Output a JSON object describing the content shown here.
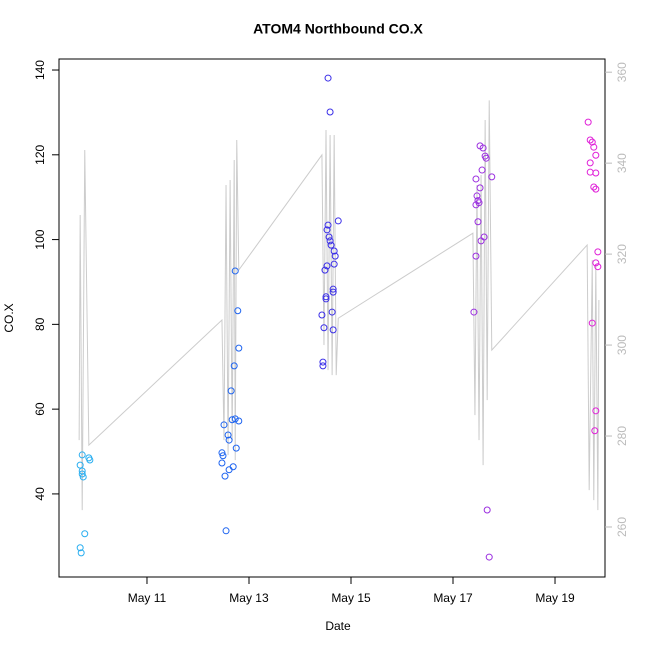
{
  "chart_data": {
    "type": "scatter",
    "title": "ATOM4 Northbound CO.X",
    "x_label": "Date",
    "y_label": "CO.X",
    "xlim": [
      9.275,
      19.98
    ],
    "xticks": [
      {
        "value": 11,
        "label": "May 11"
      },
      {
        "value": 13,
        "label": "May 13"
      },
      {
        "value": 15,
        "label": "May 15"
      },
      {
        "value": 17,
        "label": "May 17"
      },
      {
        "value": 19,
        "label": "May 19"
      }
    ],
    "ylim": [
      20.4,
      142.6
    ],
    "yticks": [
      40,
      60,
      80,
      100,
      120,
      140
    ],
    "y2lim": [
      249,
      362.9
    ],
    "y2ticks": [
      260,
      280,
      300,
      320,
      340,
      360
    ],
    "series": [
      {
        "color": "#29aef0",
        "x": [
          9.69,
          9.73,
          9.73,
          9.75,
          9.73,
          9.86,
          9.88,
          9.78,
          9.69,
          9.71
        ],
        "values": [
          46.8,
          45.4,
          44.7,
          44,
          49.2,
          48.5,
          48,
          30.6,
          27.3,
          26.1
        ]
      },
      {
        "color": "#1e64f0",
        "x": [
          12.51,
          12.47,
          12.49,
          12.47,
          12.53,
          12.55,
          12.61,
          12.59,
          12.61,
          12.65,
          12.67,
          12.69,
          12.71,
          12.73,
          12.75,
          12.78,
          12.8,
          12.8,
          12.73
        ],
        "values": [
          56.3,
          49.7,
          49,
          47.3,
          44.2,
          31.3,
          45.7,
          53.9,
          52.7,
          64.3,
          57.5,
          46.4,
          70.2,
          92.6,
          50.8,
          83.2,
          74.4,
          57.2,
          57.7
        ]
      },
      {
        "color": "#3a2ee8",
        "x": [
          14.55,
          14.59,
          14.43,
          14.45,
          14.45,
          14.47,
          14.49,
          14.51,
          14.51,
          14.53,
          14.55,
          14.53,
          14.57,
          14.59,
          14.61,
          14.65,
          14.65,
          14.63,
          14.65,
          14.67,
          14.69,
          14.67,
          14.75
        ],
        "values": [
          138.1,
          130.1,
          82.2,
          71.1,
          70.2,
          79.2,
          92.8,
          86.5,
          86,
          93.8,
          103.4,
          102.3,
          100.6,
          99.7,
          98.7,
          87.6,
          88.3,
          82.9,
          78.7,
          97.3,
          96.1,
          94.2,
          104.4
        ]
      },
      {
        "color": "#9b2fe0",
        "x": [
          17.41,
          17.45,
          17.45,
          17.47,
          17.45,
          17.49,
          17.51,
          17.53,
          17.55,
          17.53,
          17.57,
          17.59,
          17.63,
          17.65,
          17.61,
          17.67,
          17.71,
          17.76,
          17.49
        ],
        "values": [
          82.9,
          96.1,
          108.2,
          110.3,
          114.3,
          104.2,
          108.7,
          122.1,
          99.7,
          112.2,
          116.4,
          121.6,
          119.7,
          119.2,
          100.6,
          36.2,
          25.1,
          114.8,
          109.2
        ]
      },
      {
        "color": "#e020d8",
        "x": [
          19.65,
          19.69,
          19.73,
          19.76,
          19.8,
          19.69,
          19.69,
          19.8,
          19.76,
          19.8,
          19.84,
          19.8,
          19.84,
          19.73,
          19.8,
          19.78
        ],
        "values": [
          127.7,
          123.5,
          123,
          121.8,
          119.9,
          118.1,
          115.9,
          115.7,
          112.4,
          111.9,
          97.1,
          94.5,
          93.6,
          80.3,
          59.6,
          54.9
        ]
      },
      {
        "color": "#cccccc",
        "axis": "y2",
        "style": "line",
        "x": [
          9.67,
          9.69,
          9.73,
          9.78,
          9.86,
          12.47,
          12.51,
          12.55,
          12.59,
          12.63,
          12.67,
          12.71,
          12.73,
          12.76,
          12.8,
          14.43,
          14.47,
          14.51,
          14.55,
          14.59,
          14.63,
          14.67,
          14.71,
          14.75,
          17.39,
          17.43,
          17.47,
          17.51,
          17.55,
          17.59,
          17.63,
          17.67,
          17.71,
          17.76,
          19.63,
          19.67,
          19.73,
          19.76,
          19.8,
          19.84,
          19.86
        ],
        "values": [
          279.1,
          328.6,
          263.7,
          342.9,
          278,
          305.5,
          279.1,
          335.2,
          275.8,
          336.3,
          279.1,
          340.7,
          274.7,
          345.1,
          316.5,
          341.8,
          300,
          347.3,
          294.5,
          346.2,
          293.4,
          346.2,
          293.4,
          305.9,
          324.6,
          284.6,
          335.2,
          279.1,
          337.4,
          273.6,
          349.5,
          287.9,
          353.8,
          298.9,
          322,
          268.1,
          318.7,
          265.9,
          317.6,
          263.7,
          309.9
        ]
      }
    ]
  }
}
